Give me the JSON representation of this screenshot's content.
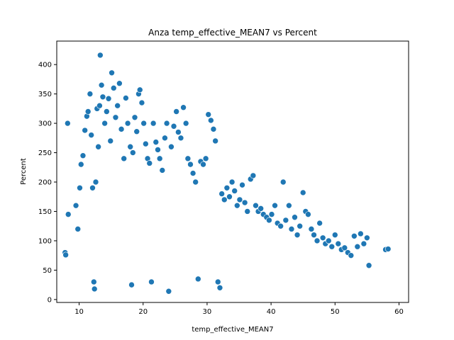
{
  "chart_data": {
    "type": "scatter",
    "title": "Anza temp_effective_MEAN7 vs Percent",
    "xlabel": "temp_effective_MEAN7",
    "ylabel": "Percent",
    "xlim": [
      6.5,
      61.5
    ],
    "ylim": [
      -5,
      440
    ],
    "xticks": [
      10,
      20,
      30,
      40,
      50,
      60
    ],
    "yticks": [
      0,
      50,
      100,
      150,
      200,
      250,
      300,
      350,
      400
    ],
    "grid": false,
    "legend": "none",
    "point_color": "#1f77b4",
    "point_edge_color": "#ffffff",
    "series": [
      {
        "points": [
          [
            7.8,
            80
          ],
          [
            7.9,
            76
          ],
          [
            8.2,
            300
          ],
          [
            8.3,
            145
          ],
          [
            9.5,
            160
          ],
          [
            9.8,
            120
          ],
          [
            10.1,
            190
          ],
          [
            10.3,
            230
          ],
          [
            10.6,
            245
          ],
          [
            10.9,
            288
          ],
          [
            11.2,
            312
          ],
          [
            11.4,
            320
          ],
          [
            11.7,
            350
          ],
          [
            11.9,
            280
          ],
          [
            12.1,
            190
          ],
          [
            12.3,
            30
          ],
          [
            12.4,
            18
          ],
          [
            12.6,
            200
          ],
          [
            12.8,
            325
          ],
          [
            13.0,
            260
          ],
          [
            13.2,
            330
          ],
          [
            13.3,
            416
          ],
          [
            13.5,
            365
          ],
          [
            13.7,
            345
          ],
          [
            14.0,
            300
          ],
          [
            14.3,
            320
          ],
          [
            14.6,
            342
          ],
          [
            14.9,
            270
          ],
          [
            15.1,
            386
          ],
          [
            15.4,
            360
          ],
          [
            15.7,
            310
          ],
          [
            16.0,
            330
          ],
          [
            16.3,
            368
          ],
          [
            16.6,
            290
          ],
          [
            17.0,
            240
          ],
          [
            17.3,
            343
          ],
          [
            17.6,
            300
          ],
          [
            18.0,
            260
          ],
          [
            18.2,
            25
          ],
          [
            18.4,
            250
          ],
          [
            18.7,
            310
          ],
          [
            19.0,
            286
          ],
          [
            19.3,
            350
          ],
          [
            19.5,
            357
          ],
          [
            19.8,
            335
          ],
          [
            20.1,
            300
          ],
          [
            20.4,
            265
          ],
          [
            20.7,
            240
          ],
          [
            21.0,
            232
          ],
          [
            21.3,
            30
          ],
          [
            21.6,
            300
          ],
          [
            22.0,
            268
          ],
          [
            22.3,
            255
          ],
          [
            22.6,
            240
          ],
          [
            23.0,
            220
          ],
          [
            23.4,
            275
          ],
          [
            23.7,
            300
          ],
          [
            24.0,
            14
          ],
          [
            24.4,
            260
          ],
          [
            24.8,
            295
          ],
          [
            25.2,
            320
          ],
          [
            25.5,
            285
          ],
          [
            25.9,
            275
          ],
          [
            26.3,
            327
          ],
          [
            26.7,
            300
          ],
          [
            27.0,
            240
          ],
          [
            27.4,
            230
          ],
          [
            27.8,
            215
          ],
          [
            28.2,
            200
          ],
          [
            28.6,
            35
          ],
          [
            29.0,
            235
          ],
          [
            29.4,
            230
          ],
          [
            29.8,
            240
          ],
          [
            30.2,
            315
          ],
          [
            30.6,
            305
          ],
          [
            31.0,
            290
          ],
          [
            31.3,
            270
          ],
          [
            31.7,
            30
          ],
          [
            32.0,
            20
          ],
          [
            32.3,
            180
          ],
          [
            32.7,
            170
          ],
          [
            33.1,
            190
          ],
          [
            33.5,
            175
          ],
          [
            33.9,
            200
          ],
          [
            34.3,
            185
          ],
          [
            34.7,
            160
          ],
          [
            35.1,
            170
          ],
          [
            35.5,
            195
          ],
          [
            35.9,
            165
          ],
          [
            36.3,
            150
          ],
          [
            36.8,
            205
          ],
          [
            37.2,
            211
          ],
          [
            37.6,
            160
          ],
          [
            38.0,
            150
          ],
          [
            38.4,
            155
          ],
          [
            38.8,
            145
          ],
          [
            39.3,
            140
          ],
          [
            39.7,
            135
          ],
          [
            40.1,
            145
          ],
          [
            40.6,
            160
          ],
          [
            41.0,
            130
          ],
          [
            41.5,
            125
          ],
          [
            41.9,
            200
          ],
          [
            42.3,
            135
          ],
          [
            42.8,
            160
          ],
          [
            43.2,
            120
          ],
          [
            43.7,
            140
          ],
          [
            44.1,
            110
          ],
          [
            44.5,
            125
          ],
          [
            45.0,
            182
          ],
          [
            45.4,
            150
          ],
          [
            45.8,
            145
          ],
          [
            46.3,
            120
          ],
          [
            46.7,
            110
          ],
          [
            47.2,
            100
          ],
          [
            47.6,
            130
          ],
          [
            48.1,
            105
          ],
          [
            48.5,
            95
          ],
          [
            49.0,
            100
          ],
          [
            49.5,
            90
          ],
          [
            50.0,
            110
          ],
          [
            50.5,
            95
          ],
          [
            51.0,
            85
          ],
          [
            51.5,
            88
          ],
          [
            52.0,
            80
          ],
          [
            52.5,
            75
          ],
          [
            53.0,
            108
          ],
          [
            53.5,
            90
          ],
          [
            54.0,
            112
          ],
          [
            54.5,
            95
          ],
          [
            55.0,
            105
          ],
          [
            55.3,
            58
          ],
          [
            57.9,
            85
          ],
          [
            58.3,
            86
          ]
        ]
      }
    ]
  }
}
